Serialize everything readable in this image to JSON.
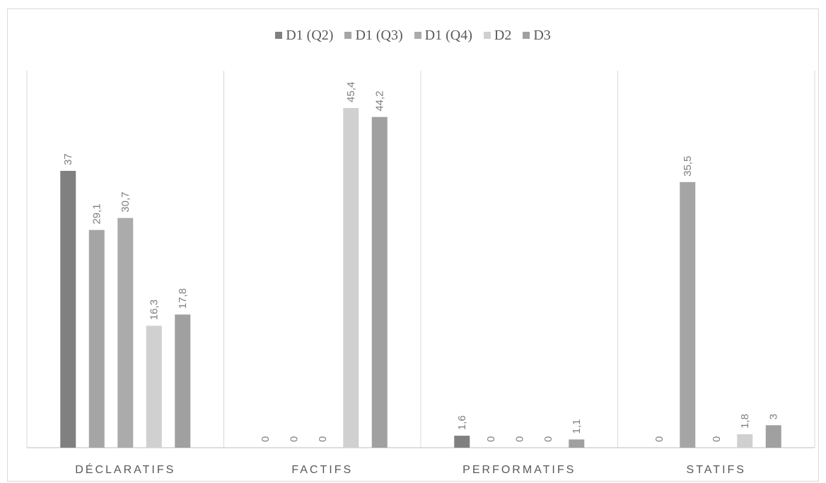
{
  "chart_data": {
    "type": "bar",
    "categories": [
      "DÉCLARATIFS",
      "FACTIFS",
      "PERFORMATIFS",
      "STATIFS"
    ],
    "series": [
      {
        "name": "D1 (Q2)",
        "color": "#808080",
        "values": [
          37,
          0,
          1.6,
          0
        ],
        "labels": [
          "37",
          "0",
          "1,6",
          "0"
        ]
      },
      {
        "name": "D1 (Q3)",
        "color": "#a5a5a5",
        "values": [
          29.1,
          0,
          0,
          35.5
        ],
        "labels": [
          "29,1",
          "0",
          "0",
          "35,5"
        ]
      },
      {
        "name": "D1 (Q4)",
        "color": "#ababab",
        "values": [
          30.7,
          0,
          0,
          0
        ],
        "labels": [
          "30,7",
          "0",
          "0",
          "0"
        ]
      },
      {
        "name": "D2",
        "color": "#d0d0d0",
        "values": [
          16.3,
          45.4,
          0,
          1.8
        ],
        "labels": [
          "16,3",
          "45,4",
          "0",
          "1,8"
        ]
      },
      {
        "name": "D3",
        "color": "#a0a0a0",
        "values": [
          17.8,
          44.2,
          1.1,
          3
        ],
        "labels": [
          "17,8",
          "44,2",
          "1,1",
          "3"
        ]
      }
    ],
    "ylim": [
      0,
      50
    ],
    "grid": false,
    "category_separators": true,
    "legend_position": "top",
    "data_labels": "rotated vertical"
  }
}
